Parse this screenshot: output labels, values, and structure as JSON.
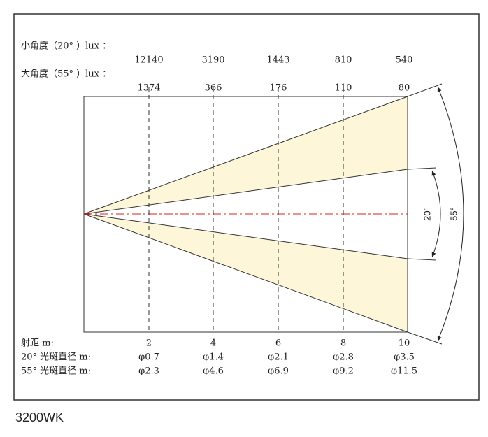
{
  "narrow_lux": {
    "label": "小角度（20° ）lux ：",
    "values": [
      12140,
      3190,
      1443,
      810,
      540
    ]
  },
  "wide_lux": {
    "label": "大角度（55° ）lux ：",
    "values": [
      1374,
      366,
      176,
      110,
      80
    ]
  },
  "distance": {
    "label": "射距 m:",
    "values": [
      2,
      4,
      6,
      8,
      10
    ]
  },
  "narrow_spot": {
    "label": "20° 光斑直径 m:",
    "values": [
      "φ0.7",
      "φ1.4",
      "φ2.1",
      "φ2.8",
      "φ3.5"
    ]
  },
  "wide_spot": {
    "label": "55° 光斑直径 m:",
    "values": [
      "φ2.3",
      "φ4.6",
      "φ6.9",
      "φ9.2",
      "φ11.5"
    ]
  },
  "angles": {
    "narrow": "20°",
    "wide": "55°"
  },
  "caption": "3200WK"
}
